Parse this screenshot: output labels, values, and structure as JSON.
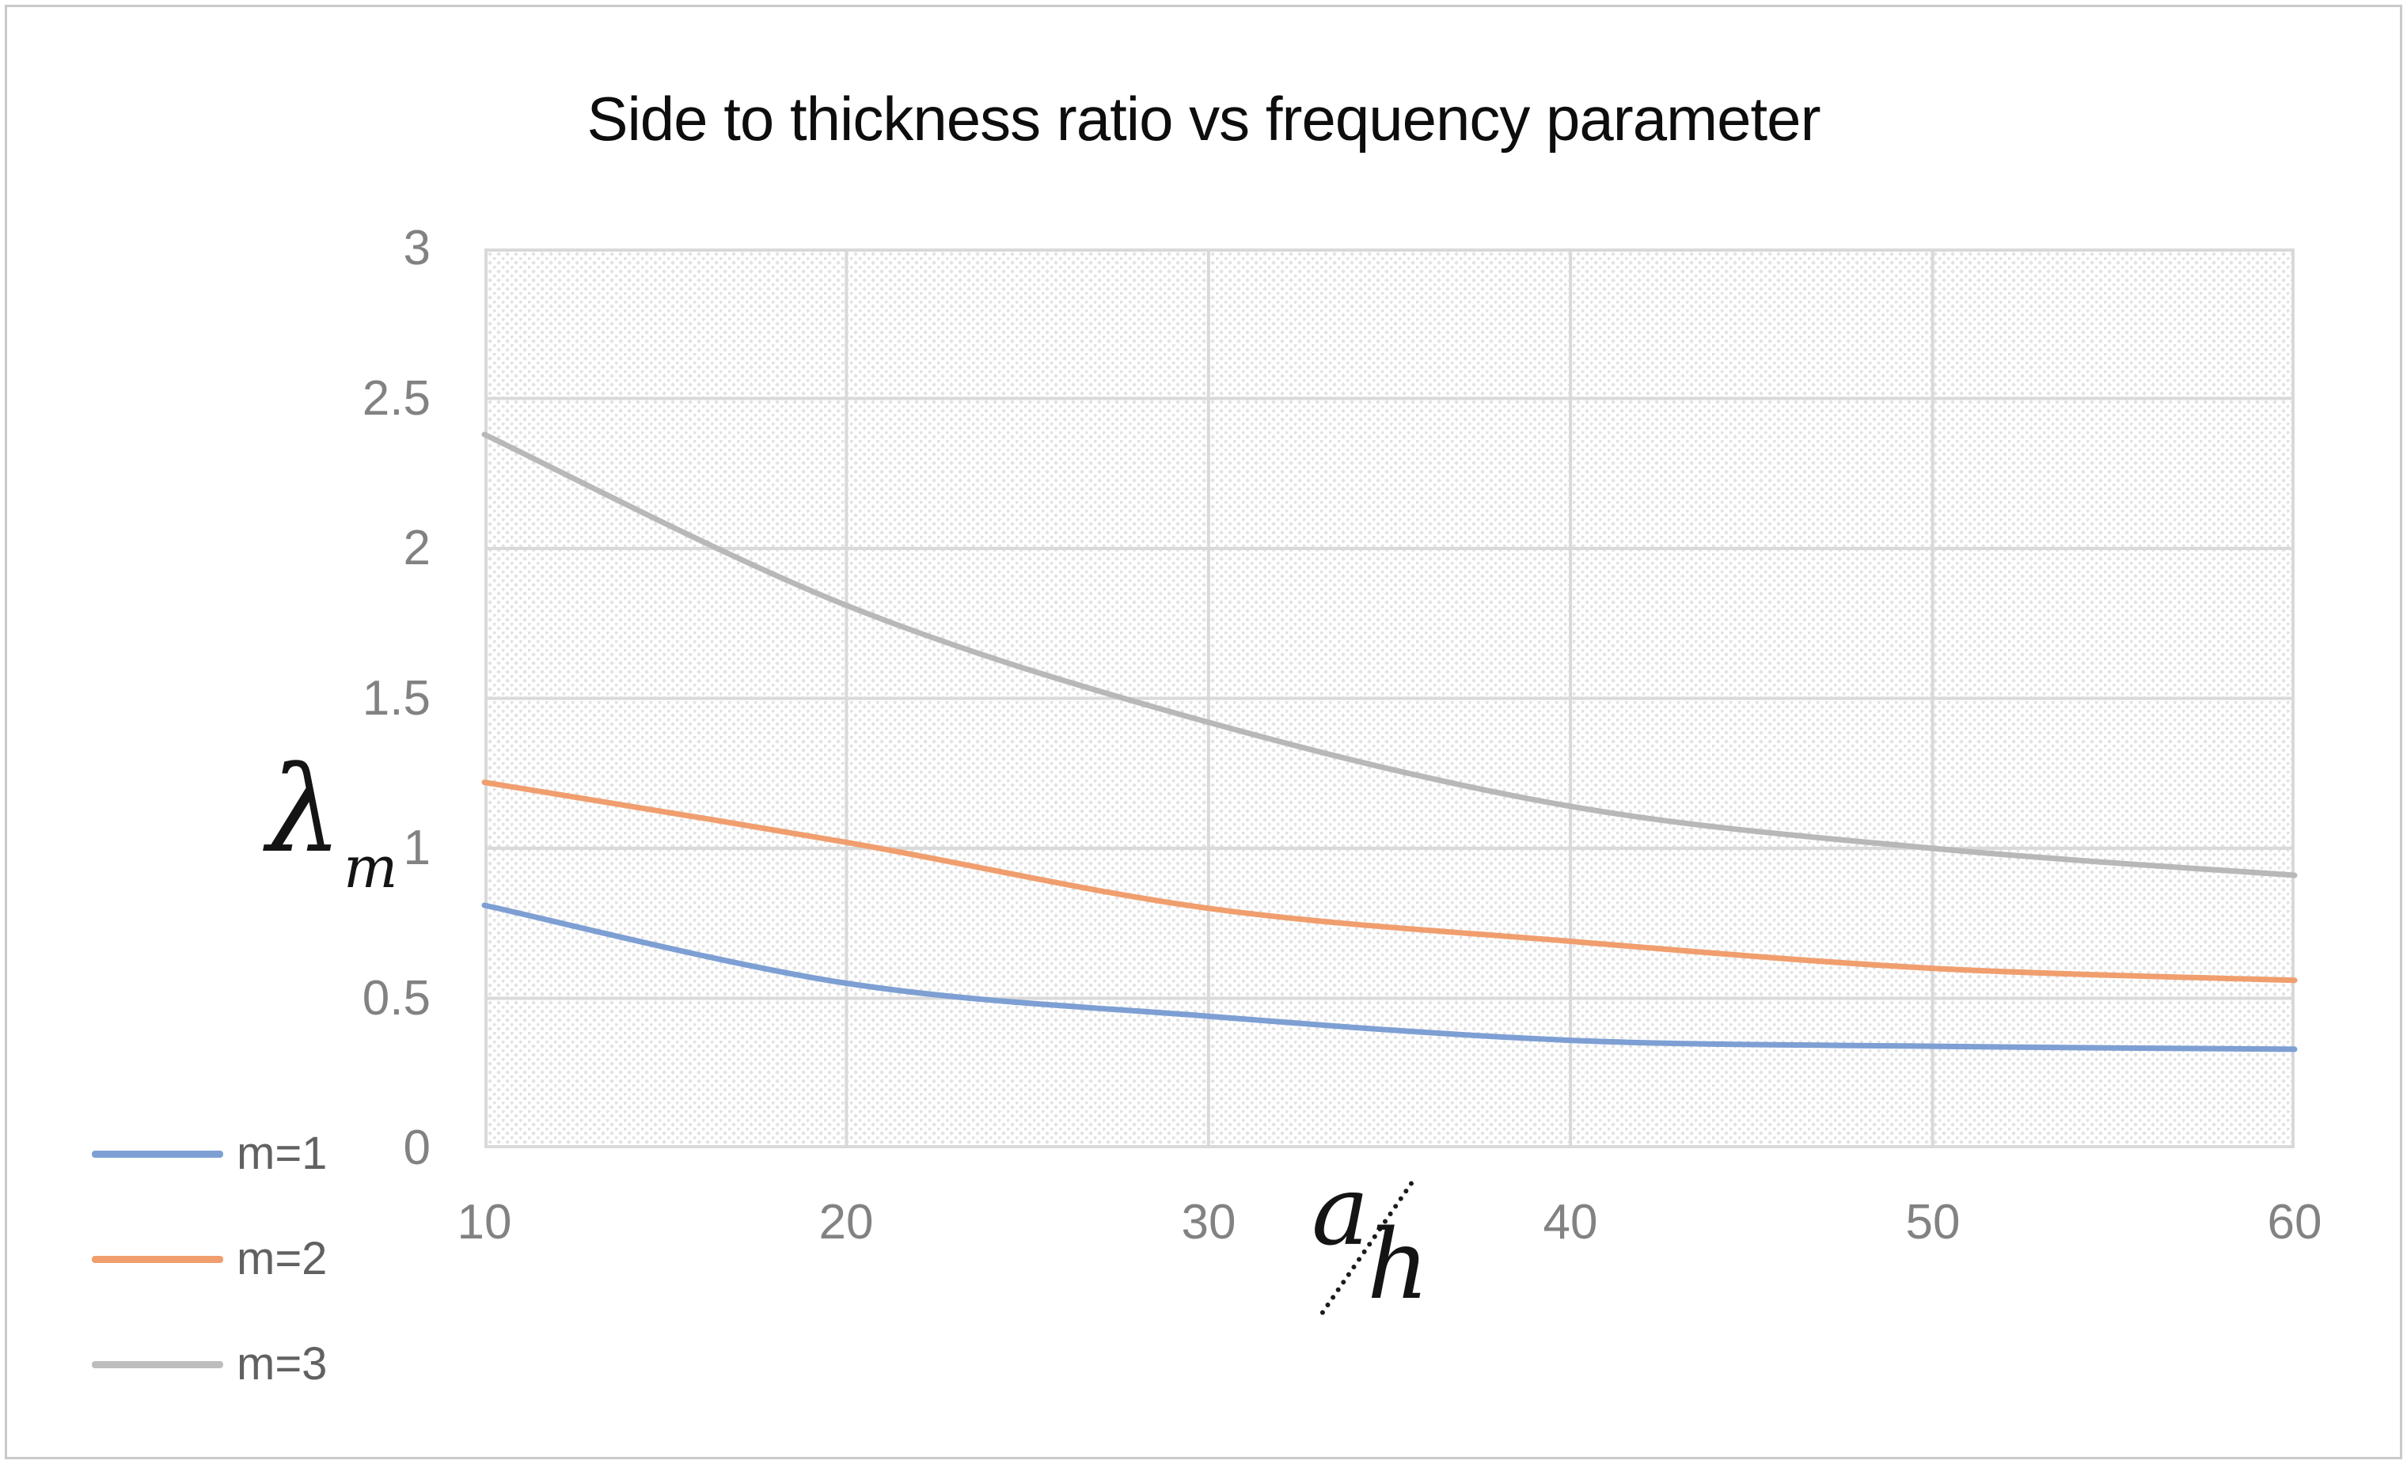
{
  "figure": {
    "title": "Side to thickness ratio vs frequency parameter",
    "y_axis_label": {
      "symbol": "λ",
      "subscript": "m"
    },
    "x_axis_label": {
      "numerator": "a",
      "denominator": "h"
    }
  },
  "legend": [
    {
      "label": "m=1",
      "color": "#7d9fd3"
    },
    {
      "label": "m=2",
      "color": "#f09e6e"
    },
    {
      "label": "m=3",
      "color": "#bdbdbd"
    }
  ],
  "chart_data": {
    "type": "line",
    "title": "Side to thickness ratio vs frequency parameter",
    "xlabel": "a/h",
    "ylabel": "λ_m",
    "x": [
      10,
      20,
      30,
      40,
      50,
      60
    ],
    "series": [
      {
        "name": "m=1",
        "color": "#7d9fd3",
        "values": [
          0.81,
          0.55,
          0.44,
          0.36,
          0.34,
          0.33
        ]
      },
      {
        "name": "m=2",
        "color": "#f09e6e",
        "values": [
          1.22,
          1.02,
          0.8,
          0.69,
          0.6,
          0.56
        ]
      },
      {
        "name": "m=3",
        "color": "#b8b8b8",
        "values": [
          2.38,
          1.81,
          1.42,
          1.14,
          1.0,
          0.91
        ]
      }
    ],
    "xlim": [
      10,
      60
    ],
    "ylim": [
      0,
      3
    ],
    "x_ticks": [
      "10",
      "20",
      "30",
      "40",
      "50",
      "60"
    ],
    "y_ticks": [
      "0",
      "0.5",
      "1",
      "1.5",
      "2",
      "2.5",
      "3"
    ],
    "grid": true,
    "gridline_color": "#d9d9d9",
    "plot_background": "diagonal-hatch",
    "hatch_color": "#e2e2e2",
    "legend_position": "bottom-left",
    "smoothed_lines": true
  }
}
